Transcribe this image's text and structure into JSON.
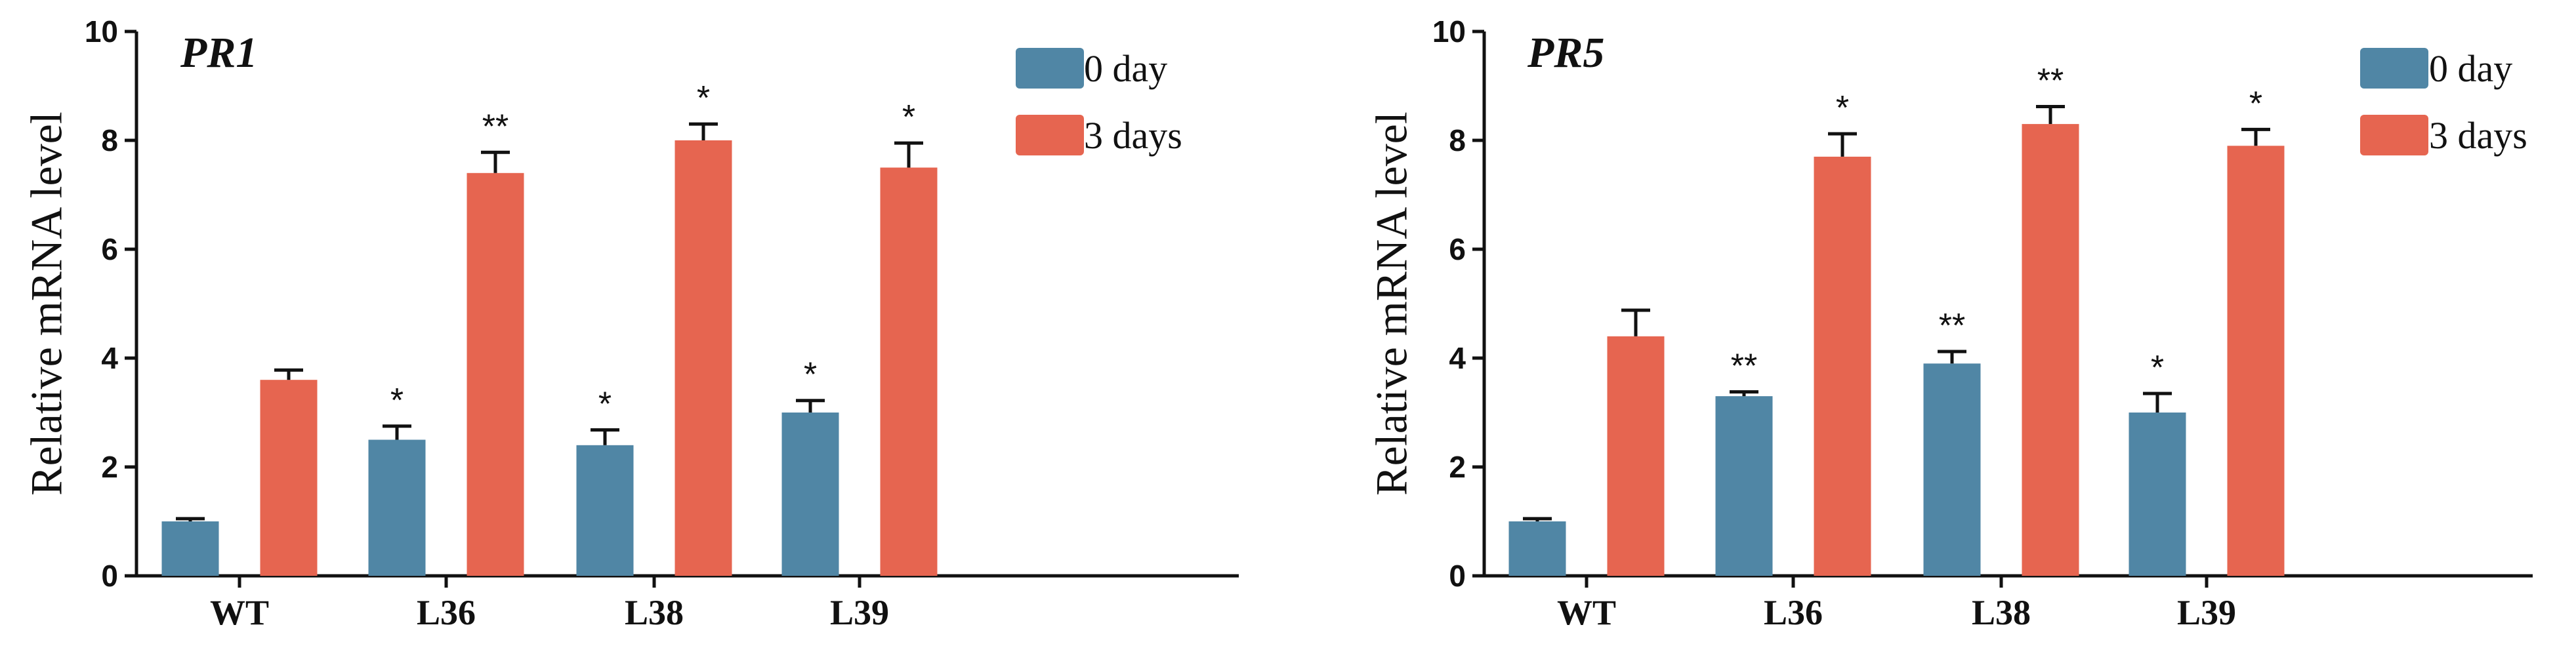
{
  "chart_data": [
    {
      "type": "bar",
      "title": "PR1",
      "xlabel": "",
      "ylabel": "Relative mRNA level",
      "ylim": [
        0,
        10
      ],
      "yticks": [
        0,
        2,
        4,
        6,
        8,
        10
      ],
      "categories": [
        "WT",
        "L36",
        "L38",
        "L39"
      ],
      "legend_position": "top-right",
      "series": [
        {
          "name": "0 day",
          "color": "#5086a5",
          "values": [
            1.0,
            2.5,
            2.4,
            3.0
          ],
          "errors": [
            0.05,
            0.25,
            0.28,
            0.22
          ],
          "significance": [
            "",
            "*",
            "*",
            "*"
          ]
        },
        {
          "name": "3 days",
          "color": "#e66550",
          "values": [
            3.6,
            7.4,
            8.0,
            7.5
          ],
          "errors": [
            0.18,
            0.38,
            0.3,
            0.45
          ],
          "significance": [
            "",
            "**",
            "*",
            "*"
          ]
        }
      ]
    },
    {
      "type": "bar",
      "title": "PR5",
      "xlabel": "",
      "ylabel": "Relative mRNA level",
      "ylim": [
        0,
        10
      ],
      "yticks": [
        0,
        2,
        4,
        6,
        8,
        10
      ],
      "categories": [
        "WT",
        "L36",
        "L38",
        "L39"
      ],
      "legend_position": "top-right",
      "series": [
        {
          "name": "0 day",
          "color": "#5086a5",
          "values": [
            1.0,
            3.3,
            3.9,
            3.0
          ],
          "errors": [
            0.05,
            0.08,
            0.22,
            0.35
          ],
          "significance": [
            "",
            "**",
            "**",
            "*"
          ]
        },
        {
          "name": "3 days",
          "color": "#e66550",
          "values": [
            4.4,
            7.7,
            8.3,
            7.9
          ],
          "errors": [
            0.48,
            0.42,
            0.32,
            0.3
          ],
          "significance": [
            "",
            "*",
            "**",
            "*"
          ]
        }
      ]
    }
  ]
}
